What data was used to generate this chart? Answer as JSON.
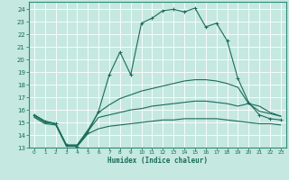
{
  "xlabel": "Humidex (Indice chaleur)",
  "bg_color": "#c5e8e0",
  "grid_color": "#ffffff",
  "line_color": "#1a6b5a",
  "border_color": "#2e8b7a",
  "xlim": [
    -0.5,
    23.5
  ],
  "ylim": [
    13,
    24.6
  ],
  "xticks": [
    0,
    1,
    2,
    3,
    4,
    5,
    6,
    7,
    8,
    9,
    10,
    11,
    12,
    13,
    14,
    15,
    16,
    17,
    18,
    19,
    20,
    21,
    22,
    23
  ],
  "yticks": [
    13,
    14,
    15,
    16,
    17,
    18,
    19,
    20,
    21,
    22,
    23,
    24
  ],
  "series": [
    {
      "x": [
        0,
        1,
        2,
        3,
        4,
        5,
        6,
        7,
        8,
        9,
        10,
        11,
        12,
        13,
        14,
        15,
        16,
        17,
        18,
        19,
        20,
        21,
        22,
        23
      ],
      "y": [
        15.6,
        15.1,
        14.9,
        13.2,
        13.1,
        14.2,
        15.9,
        18.8,
        20.6,
        18.8,
        22.9,
        23.3,
        23.9,
        24.0,
        23.8,
        24.1,
        22.6,
        22.9,
        21.5,
        18.5,
        16.6,
        15.6,
        15.3,
        15.2
      ],
      "marker": "+"
    },
    {
      "x": [
        0,
        1,
        2,
        3,
        4,
        5,
        6,
        7,
        8,
        9,
        10,
        11,
        12,
        13,
        14,
        15,
        16,
        17,
        18,
        19,
        20,
        21,
        22,
        23
      ],
      "y": [
        15.6,
        15.1,
        14.9,
        13.2,
        13.2,
        14.4,
        15.8,
        16.4,
        16.9,
        17.2,
        17.5,
        17.7,
        17.9,
        18.1,
        18.3,
        18.4,
        18.4,
        18.3,
        18.1,
        17.8,
        16.5,
        15.9,
        15.7,
        15.5
      ],
      "marker": null
    },
    {
      "x": [
        0,
        1,
        2,
        3,
        4,
        5,
        6,
        7,
        8,
        9,
        10,
        11,
        12,
        13,
        14,
        15,
        16,
        17,
        18,
        19,
        20,
        21,
        22,
        23
      ],
      "y": [
        15.5,
        15.0,
        14.9,
        13.2,
        13.2,
        14.3,
        15.4,
        15.6,
        15.8,
        16.0,
        16.1,
        16.3,
        16.4,
        16.5,
        16.6,
        16.7,
        16.7,
        16.6,
        16.5,
        16.3,
        16.5,
        16.3,
        15.8,
        15.5
      ],
      "marker": null
    },
    {
      "x": [
        0,
        1,
        2,
        3,
        4,
        5,
        6,
        7,
        8,
        9,
        10,
        11,
        12,
        13,
        14,
        15,
        16,
        17,
        18,
        19,
        20,
        21,
        22,
        23
      ],
      "y": [
        15.4,
        14.9,
        14.8,
        13.1,
        13.1,
        14.1,
        14.5,
        14.7,
        14.8,
        14.9,
        15.0,
        15.1,
        15.2,
        15.2,
        15.3,
        15.3,
        15.3,
        15.3,
        15.2,
        15.1,
        15.0,
        14.9,
        14.9,
        14.8
      ],
      "marker": null
    }
  ]
}
